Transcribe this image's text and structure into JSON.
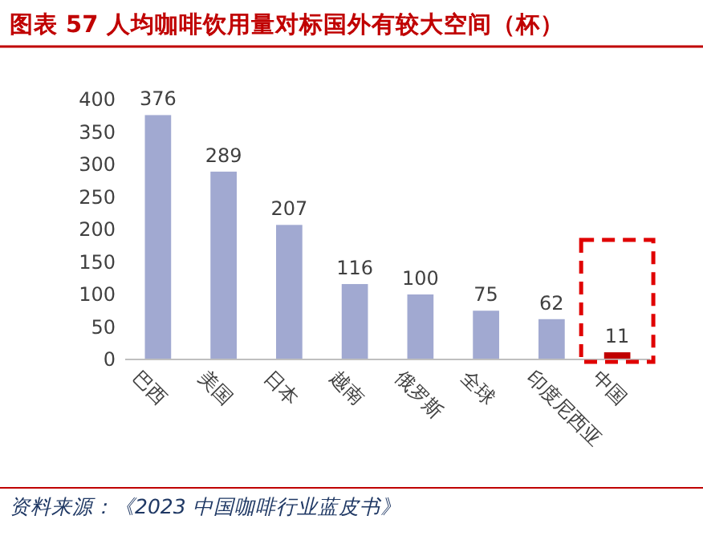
{
  "chart_data": {
    "type": "bar",
    "title": "图表 57  人均咖啡饮用量对标国外有较大空间（杯）",
    "categories": [
      "巴西",
      "美国",
      "日本",
      "越南",
      "俄罗斯",
      "全球",
      "印度尼西亚",
      "中国"
    ],
    "values": [
      376,
      289,
      207,
      116,
      100,
      75,
      62,
      11
    ],
    "colors": [
      "#a1a9d1",
      "#a1a9d1",
      "#a1a9d1",
      "#a1a9d1",
      "#a1a9d1",
      "#a1a9d1",
      "#a1a9d1",
      "#c00000"
    ],
    "ylim": [
      0,
      400
    ],
    "yticks": [
      0,
      50,
      100,
      150,
      200,
      250,
      300,
      350,
      400
    ],
    "data_labels": true,
    "grid": false,
    "annotations": [
      "资料来源：《2023 中国咖啡行业蓝皮书》"
    ]
  }
}
